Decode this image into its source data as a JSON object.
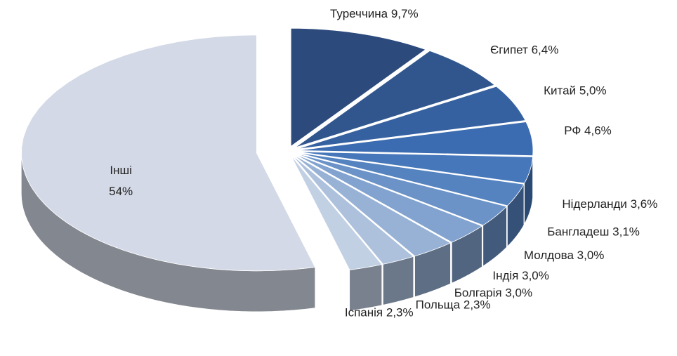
{
  "chart_data": {
    "type": "pie",
    "categories": [
      "Туреччина",
      "Єгипет",
      "Китай",
      "РФ",
      "Нідерланди",
      "Бангладеш",
      "Молдова",
      "Індія",
      "Болгарія",
      "Польща",
      "Іспанія",
      "Інші"
    ],
    "values": [
      9.7,
      6.4,
      5.0,
      4.6,
      3.6,
      3.1,
      3.0,
      3.0,
      3.0,
      2.3,
      2.3,
      54
    ],
    "value_labels": [
      "9,7%",
      "6,4%",
      "5,0%",
      "4,6%",
      "3,6%",
      "3,1%",
      "3,0%",
      "3,0%",
      "3,0%",
      "2,3%",
      "2,3%",
      "54%"
    ],
    "colors": [
      "#2c4a7c",
      "#31568e",
      "#3661a0",
      "#3b6bb0",
      "#4677ba",
      "#5583c0",
      "#6b93c8",
      "#82a3cf",
      "#98b2d6",
      "#adc1dd",
      "#c2d0e4",
      "#d3d9e6"
    ]
  }
}
